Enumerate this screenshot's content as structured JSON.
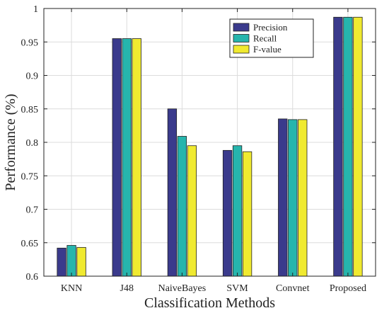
{
  "chart_data": {
    "type": "bar",
    "title": "",
    "xlabel": "Classification Methods",
    "ylabel": "Performance (%)",
    "categories": [
      "KNN",
      "J48",
      "NaiveBayes",
      "SVM",
      "Convnet",
      "Proposed"
    ],
    "series": [
      {
        "name": "Precision",
        "color": "#3a3a8c",
        "values": [
          0.642,
          0.955,
          0.85,
          0.788,
          0.835,
          0.987
        ]
      },
      {
        "name": "Recall",
        "color": "#26b5ad",
        "values": [
          0.646,
          0.955,
          0.809,
          0.795,
          0.834,
          0.987
        ]
      },
      {
        "name": "F-value",
        "color": "#f0ea30",
        "values": [
          0.643,
          0.955,
          0.795,
          0.786,
          0.834,
          0.987
        ]
      }
    ],
    "ylim": [
      0.6,
      1.0
    ],
    "yticks": [
      0.6,
      0.65,
      0.7,
      0.75,
      0.8,
      0.85,
      0.9,
      0.95,
      1.0
    ],
    "ytick_labels": [
      "0.6",
      "0.65",
      "0.7",
      "0.75",
      "0.8",
      "0.85",
      "0.9",
      "0.95",
      "1"
    ],
    "grid": true,
    "legend_position": "top-right"
  }
}
